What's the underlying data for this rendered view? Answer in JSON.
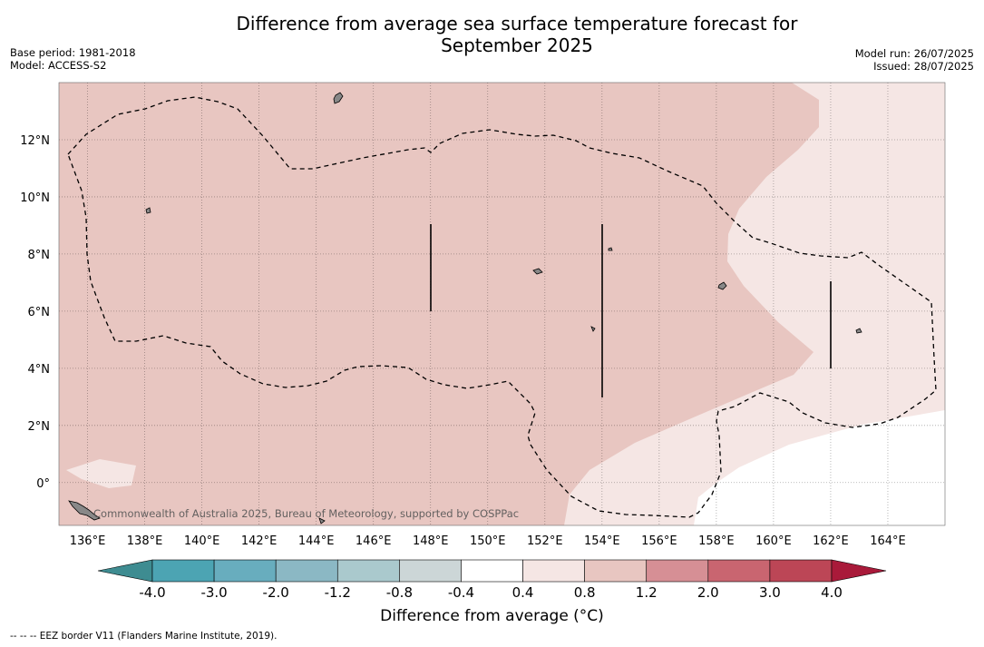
{
  "title_line1": "Difference from average sea surface temperature forecast for",
  "title_line2": "September 2025",
  "base_period": "Base period: 1981-2018",
  "model": "Model: ACCESS-S2",
  "model_run": "Model run: 26/07/2025",
  "issued": "Issued: 28/07/2025",
  "copyright": "Commonwealth of Australia 2025, Bureau of Meteorology, supported by COSPPac",
  "legend_note": "--  --  -- EEZ border V11 (Flanders Marine Institute, 2019).",
  "map": {
    "lon_range": [
      135.0,
      166.0
    ],
    "lat_range": [
      -1.5,
      14.0
    ],
    "lon_ticks": [
      "136°E",
      "138°E",
      "140°E",
      "142°E",
      "144°E",
      "146°E",
      "148°E",
      "150°E",
      "152°E",
      "154°E",
      "156°E",
      "158°E",
      "160°E",
      "162°E",
      "164°E"
    ],
    "lat_ticks": [
      "12°N",
      "10°N",
      "8°N",
      "6°N",
      "4°N",
      "2°N",
      "0°"
    ],
    "anomaly_regions": [
      {
        "category": "0.8 to 1.2",
        "color": "#e8c6c1"
      },
      {
        "category": "0.4 to 0.8",
        "color": "#f5e6e4"
      },
      {
        "category": "-0.4 to 0.4",
        "color": "#ffffff"
      }
    ],
    "land_color": "#888888",
    "eez_style": "dashed black"
  },
  "colorbar": {
    "title": "Difference from average (°C)",
    "tick_labels": [
      "-4.0",
      "-3.0",
      "-2.0",
      "-1.2",
      "-0.8",
      "-0.4",
      "0.4",
      "0.8",
      "1.2",
      "2.0",
      "3.0",
      "4.0"
    ],
    "colors": [
      "#3e8c91",
      "#4ca4b3",
      "#68adbe",
      "#8bb8c4",
      "#aac9cd",
      "#ccd6d7",
      "#ffffff",
      "#f5e6e4",
      "#e8c6c1",
      "#d68f95",
      "#c96570",
      "#bc4656",
      "#a91a3a"
    ]
  }
}
